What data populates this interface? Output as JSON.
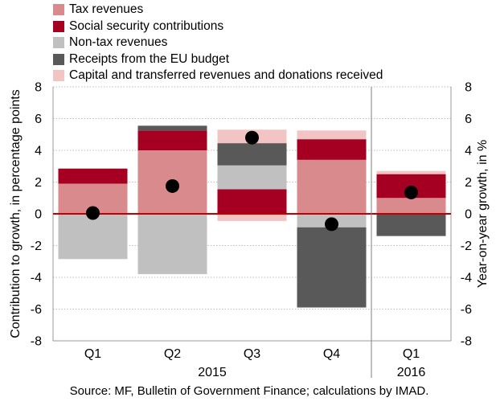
{
  "chart_data": {
    "type": "bar",
    "stacked": true,
    "categories": [
      "Q1",
      "Q2",
      "Q3",
      "Q4",
      "Q1"
    ],
    "year_labels": [
      {
        "label": "2015",
        "categories": [
          0,
          1,
          2,
          3
        ]
      },
      {
        "label": "2016",
        "categories": [
          4
        ]
      }
    ],
    "series": [
      {
        "name": "Tax revenues",
        "color": "#d98a8c",
        "values": [
          1.9,
          4.0,
          0.0,
          3.4,
          1.0
        ]
      },
      {
        "name": "Social security contributions",
        "color": "#a50021",
        "values": [
          0.95,
          1.25,
          1.55,
          1.3,
          1.5
        ]
      },
      {
        "name": "Non-tax revenues",
        "color": "#c0c0c0",
        "values": [
          -2.85,
          -3.8,
          1.5,
          -0.85,
          0.0
        ]
      },
      {
        "name": "Receipts from the EU budget",
        "color": "#595959",
        "values": [
          0.0,
          0.3,
          1.4,
          -5.05,
          -1.4
        ]
      },
      {
        "name": "Capital and transferred revenues and donations received",
        "color": "#f2c4c4",
        "values": [
          0.0,
          0.0,
          0.85,
          0.55,
          0.2
        ]
      }
    ],
    "capital_negative": [
      0.0,
      0.0,
      -0.45,
      0.0,
      0.0
    ],
    "yoy_growth": [
      0.05,
      1.75,
      4.8,
      -0.65,
      1.35
    ],
    "ylabel": "Contribution to growth, in percentage points",
    "y2label": "Year-on-year growth, in %",
    "ylim": [
      -8,
      8
    ],
    "y2lim": [
      -8,
      8
    ],
    "yticks": [
      "-8",
      "-6",
      "-4",
      "-2",
      "0",
      "2",
      "4",
      "6",
      "8"
    ],
    "grid": true,
    "legend_position": "top",
    "zero_line_color": "#c00000"
  },
  "source": "Source: MF, Bulletin of Government Finance; calculations by IMAD."
}
